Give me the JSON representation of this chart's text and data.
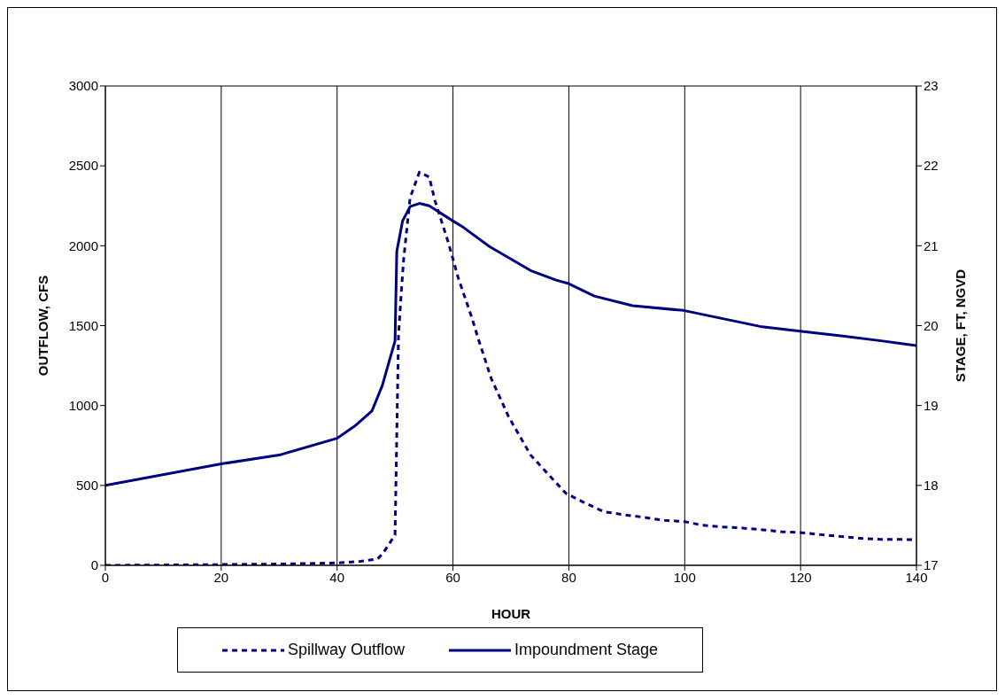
{
  "chart_data": {
    "type": "line",
    "xlabel": "HOUR",
    "ylabel": "OUTFLOW, CFS",
    "y2label": "STAGE, FT, NGVD",
    "xlim": [
      0,
      140
    ],
    "xticks": [
      0,
      20,
      40,
      60,
      80,
      100,
      120,
      140
    ],
    "ylim": [
      0,
      3000
    ],
    "yticks": [
      0,
      500,
      1000,
      1500,
      2000,
      2500,
      3000
    ],
    "y2lim": [
      17,
      23
    ],
    "y2ticks": [
      17,
      18,
      19,
      20,
      21,
      22,
      23
    ],
    "grid": true,
    "legend": "bottom",
    "marker": "none",
    "series": [
      {
        "name": "Spillway Outflow",
        "color": "#000080",
        "line_style": "dashed",
        "x": [
          0,
          10,
          20,
          30,
          40,
          44,
          47,
          48,
          50,
          50.6,
          51.1,
          51.5,
          52.6,
          54.2,
          55.9,
          56.9,
          59.2,
          60.9,
          63.3,
          64.3,
          66.6,
          69.6,
          73.4,
          76.7,
          79.5,
          82.8,
          86.1,
          89.4,
          93,
          96.5,
          99.8,
          103,
          106.4,
          109.7,
          113.5,
          116.8,
          120.2,
          123.5,
          127,
          130.6,
          133.9,
          137.2,
          140
        ],
        "values": [
          0,
          2,
          5,
          8,
          15,
          25,
          40,
          80,
          190,
          1440,
          1720,
          1920,
          2300,
          2460,
          2430,
          2280,
          2020,
          1800,
          1545,
          1425,
          1170,
          930,
          690,
          560,
          450,
          390,
          335,
          317,
          300,
          281,
          275,
          251,
          240,
          234,
          222,
          210,
          204,
          192,
          180,
          168,
          162,
          162,
          160
        ]
      },
      {
        "name": "Impoundment Stage",
        "color": "#000080",
        "line_style": "solid",
        "axis": "y2",
        "x": [
          0,
          20,
          30,
          40,
          43,
          46,
          47.8,
          50,
          50.3,
          51.3,
          52.6,
          54.2,
          55.9,
          60,
          61.8,
          66.3,
          73.4,
          77.8,
          79.8,
          84.4,
          91,
          99.8,
          106.4,
          113,
          119.9,
          127.3,
          133.9,
          140
        ],
        "values": [
          18.0,
          18.27,
          18.38,
          18.59,
          18.74,
          18.93,
          19.25,
          19.81,
          20.93,
          21.31,
          21.49,
          21.53,
          21.5,
          21.31,
          21.23,
          20.99,
          20.69,
          20.57,
          20.53,
          20.37,
          20.25,
          20.19,
          20.09,
          19.99,
          19.93,
          19.87,
          19.81,
          19.75
        ]
      }
    ]
  }
}
